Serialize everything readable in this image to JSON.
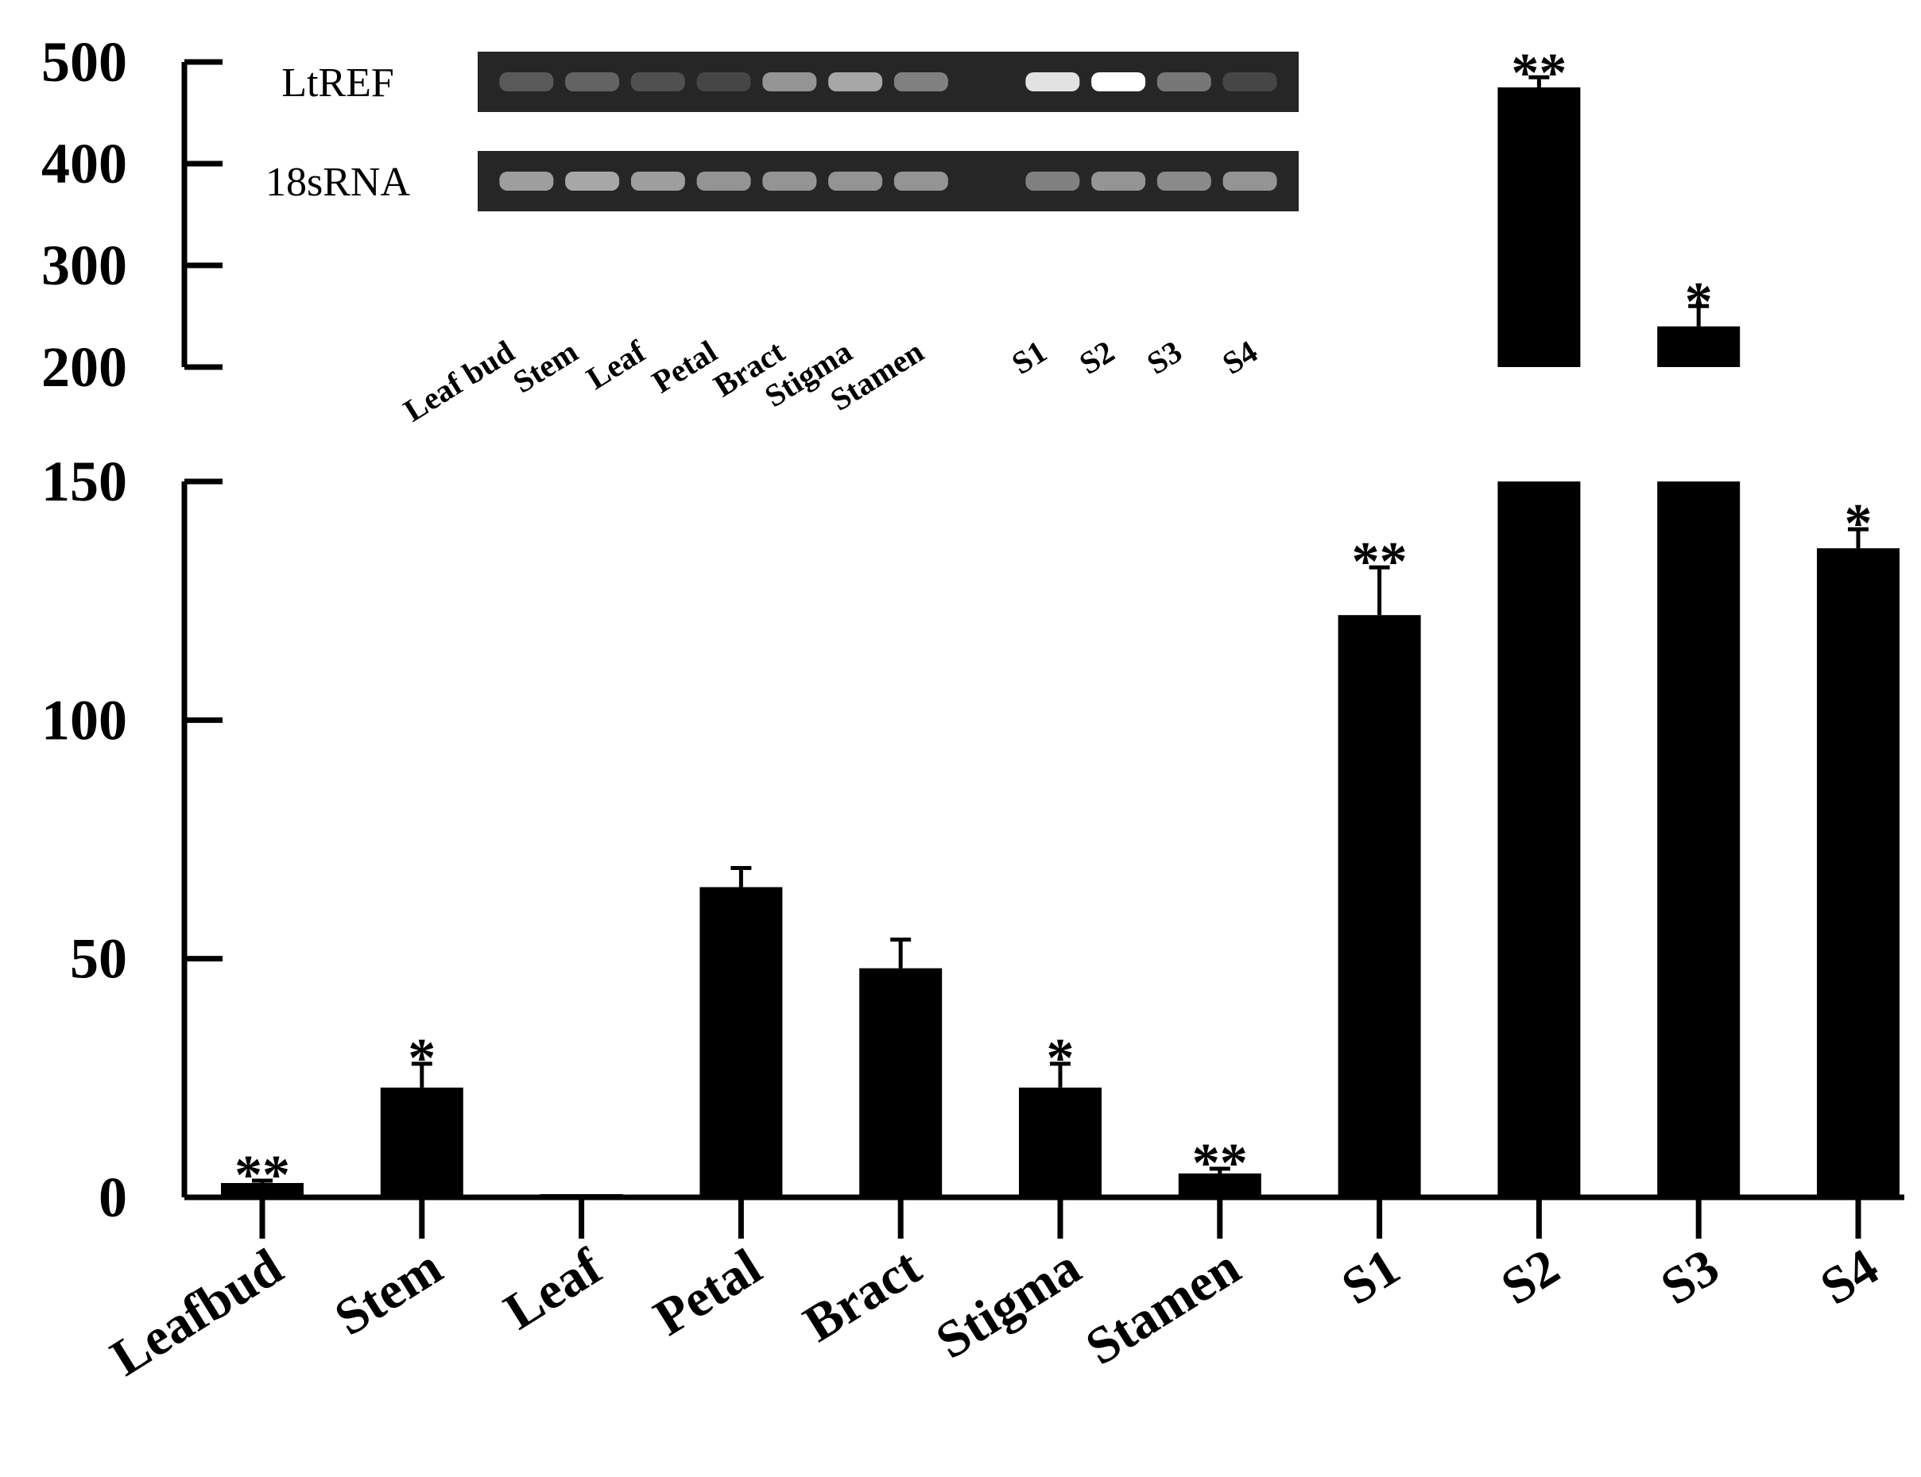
{
  "chart_data": {
    "type": "bar",
    "categories": [
      "Leafbud",
      "Stem",
      "Leaf",
      "Petal",
      "Bract",
      "Stigma",
      "Stamen",
      "S1",
      "S2",
      "S3",
      "S4"
    ],
    "values": [
      3,
      23,
      0.5,
      65,
      48,
      23,
      5,
      122,
      475,
      240,
      136
    ],
    "errors": [
      0.5,
      5,
      0.2,
      4,
      6,
      5,
      1,
      10,
      10,
      20,
      4
    ],
    "significance": [
      "**",
      "*",
      "",
      "",
      "",
      "*",
      "**",
      "**",
      "**",
      "*",
      "*"
    ],
    "ylim_lower": [
      0,
      150
    ],
    "ylim_upper": [
      200,
      500
    ],
    "yticks_lower": [
      "0",
      "50",
      "100",
      "150"
    ],
    "yticks_upper": [
      "200",
      "300",
      "400",
      "500"
    ],
    "broken_axis": true,
    "colors": {
      "bar": "#000000",
      "gel_background": "#262626",
      "gel_band": "#ffffff"
    },
    "inset": {
      "rows": [
        {
          "label": "LtREF",
          "intensities": [
            0.15,
            0.2,
            0.1,
            0.05,
            0.45,
            0.55,
            0.35,
            0.0,
            0.85,
            1.0,
            0.3,
            0.05
          ]
        },
        {
          "label": "18sRNA",
          "intensities": [
            0.5,
            0.55,
            0.5,
            0.45,
            0.45,
            0.45,
            0.45,
            0.0,
            0.35,
            0.45,
            0.4,
            0.45
          ]
        }
      ],
      "lane_labels": [
        "Leaf bud",
        "Stem",
        "Leaf",
        "Petal",
        "Bract",
        "Stigma",
        "Stamen",
        "S1",
        "S2",
        "S3",
        "S4"
      ]
    }
  }
}
